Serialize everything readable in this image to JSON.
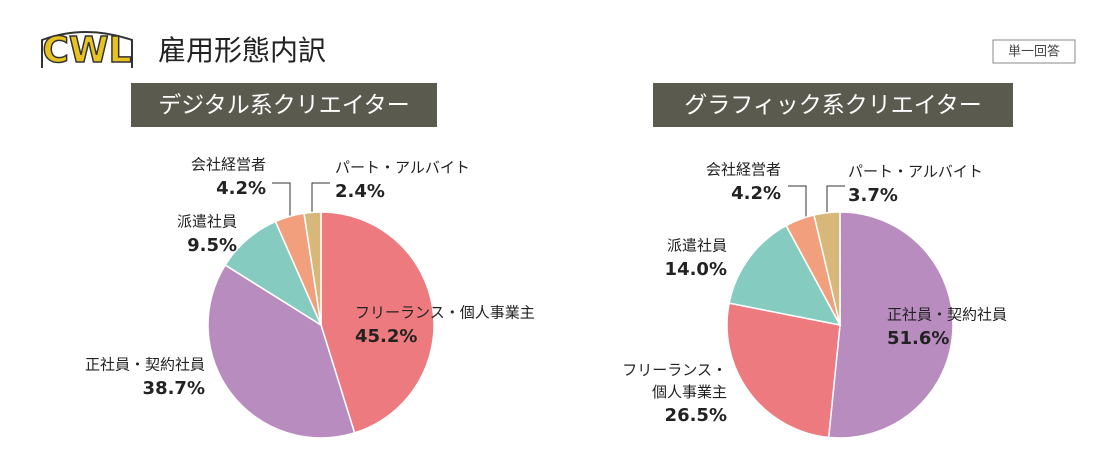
{
  "header": {
    "logo": "CWL",
    "title": "雇用形態内訳",
    "badge": "単一回答"
  },
  "chart_data": [
    {
      "type": "pie",
      "title": "デジタル系クリエイター",
      "categories": [
        "フリーランス・個人事業主",
        "正社員・契約社員",
        "派遣社員",
        "会社経営者",
        "パート・アルバイト"
      ],
      "values": [
        45.2,
        38.7,
        9.5,
        4.2,
        2.4
      ],
      "value_labels": [
        "45.2%",
        "38.7%",
        "9.5%",
        "4.2%",
        "2.4%"
      ],
      "colors": [
        "#ec7a7e",
        "#b98cc0",
        "#86cbbf",
        "#f29f7e",
        "#d8b77b"
      ]
    },
    {
      "type": "pie",
      "title": "グラフィック系クリエイター",
      "categories": [
        "正社員・契約社員",
        "フリーランス・\n個人事業主",
        "派遣社員",
        "会社経営者",
        "パート・アルバイト"
      ],
      "values": [
        51.6,
        26.5,
        14.0,
        4.2,
        3.7
      ],
      "value_labels": [
        "51.6%",
        "26.5%",
        "14.0%",
        "4.2%",
        "3.7%"
      ],
      "colors": [
        "#b98cc0",
        "#ec7a7e",
        "#86cbbf",
        "#f29f7e",
        "#d8b77b"
      ]
    }
  ]
}
